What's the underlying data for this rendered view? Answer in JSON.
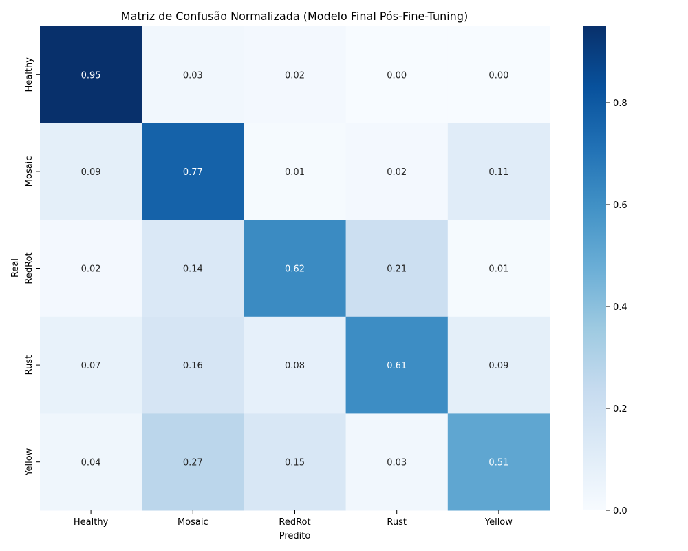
{
  "chart_data": {
    "type": "heatmap",
    "title": "Matriz de Confusão Normalizada (Modelo Final Pós-Fine-Tuning)",
    "xlabel": "Predito",
    "ylabel": "Real",
    "x_categories": [
      "Healthy",
      "Mosaic",
      "RedRot",
      "Rust",
      "Yellow"
    ],
    "y_categories": [
      "Healthy",
      "Mosaic",
      "RedRot",
      "Rust",
      "Yellow"
    ],
    "values": [
      [
        0.95,
        0.03,
        0.02,
        0.0,
        0.0
      ],
      [
        0.09,
        0.77,
        0.01,
        0.02,
        0.11
      ],
      [
        0.02,
        0.14,
        0.62,
        0.21,
        0.01
      ],
      [
        0.07,
        0.16,
        0.08,
        0.61,
        0.09
      ],
      [
        0.04,
        0.27,
        0.15,
        0.03,
        0.51
      ]
    ],
    "value_format": "0.00",
    "colormap": "Blues",
    "color_range": [
      0.0,
      0.95
    ],
    "colorbar_ticks": [
      "0.0",
      "0.2",
      "0.4",
      "0.6",
      "0.8"
    ],
    "colorbar_tick_values": [
      0.0,
      0.2,
      0.4,
      0.6,
      0.8
    ],
    "colors": {
      "low": "#f7fbff",
      "high": "#08306b",
      "text_dark": "#262626",
      "text_light": "#ffffff"
    }
  }
}
